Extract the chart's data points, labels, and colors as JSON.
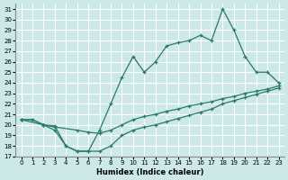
{
  "xlabel": "Humidex (Indice chaleur)",
  "bg_color": "#cce8e8",
  "grid_color": "#ffffff",
  "line_color": "#2a7a6a",
  "xlim": [
    -0.5,
    23.5
  ],
  "ylim": [
    17,
    31.5
  ],
  "yticks": [
    17,
    18,
    19,
    20,
    21,
    22,
    23,
    24,
    25,
    26,
    27,
    28,
    29,
    30,
    31
  ],
  "xticks": [
    0,
    1,
    2,
    3,
    4,
    5,
    6,
    7,
    8,
    9,
    10,
    11,
    12,
    13,
    14,
    15,
    16,
    17,
    18,
    19,
    20,
    21,
    22,
    23
  ],
  "series_top": {
    "x": [
      0,
      1,
      2,
      3,
      4,
      5,
      6,
      7,
      8,
      9,
      10,
      11,
      12,
      13,
      14,
      15,
      16,
      17,
      18,
      19,
      20,
      21,
      22,
      23
    ],
    "y": [
      20.5,
      20.5,
      20.0,
      19.9,
      18.0,
      17.5,
      17.5,
      19.5,
      22.0,
      24.5,
      26.5,
      25.0,
      26.0,
      27.5,
      27.8,
      28.0,
      28.5,
      28.0,
      31.0,
      29.0,
      26.5,
      25.0,
      25.0,
      24.0
    ]
  },
  "series_mid": {
    "x": [
      0,
      2,
      3,
      5,
      6,
      7,
      8,
      9,
      10,
      11,
      12,
      13,
      14,
      15,
      16,
      17,
      18,
      19,
      20,
      21,
      22,
      23
    ],
    "y": [
      20.5,
      20.0,
      19.8,
      19.5,
      19.3,
      19.2,
      19.5,
      20.0,
      20.5,
      20.8,
      21.0,
      21.3,
      21.5,
      21.8,
      22.0,
      22.2,
      22.5,
      22.7,
      23.0,
      23.2,
      23.4,
      23.7
    ]
  },
  "series_bot": {
    "x": [
      0,
      1,
      2,
      3,
      4,
      5,
      6,
      7,
      8,
      9,
      10,
      11,
      12,
      13,
      14,
      15,
      16,
      17,
      18,
      19,
      20,
      21,
      22,
      23
    ],
    "y": [
      20.5,
      20.5,
      20.0,
      19.5,
      18.0,
      17.5,
      17.5,
      17.5,
      18.0,
      19.0,
      19.5,
      19.8,
      20.0,
      20.3,
      20.6,
      20.9,
      21.2,
      21.5,
      22.0,
      22.3,
      22.6,
      22.9,
      23.2,
      23.5
    ]
  }
}
